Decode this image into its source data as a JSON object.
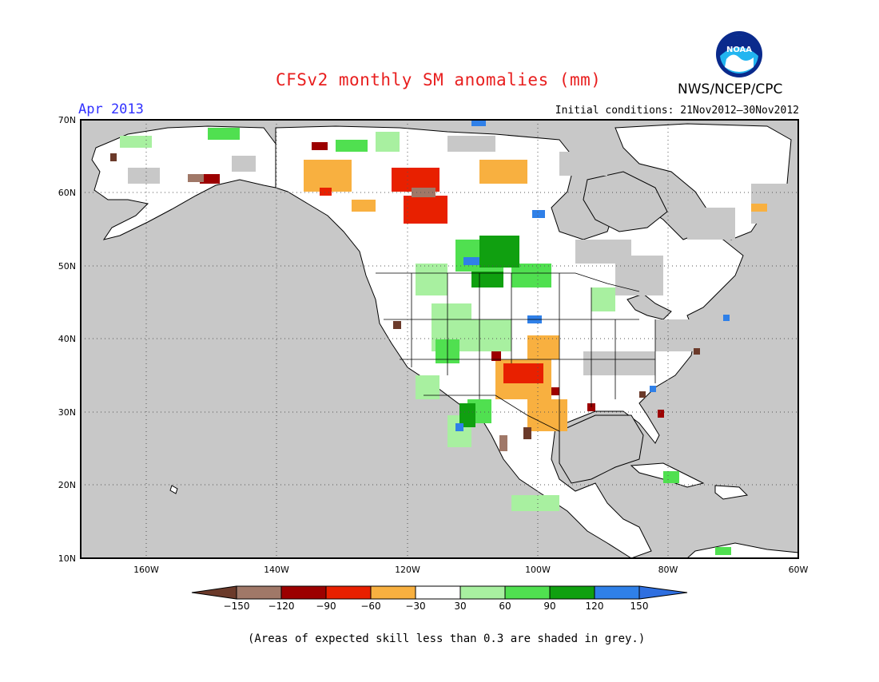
{
  "header": {
    "title": "CFSv2 monthly SM anomalies (mm)",
    "month": "Apr 2013",
    "initial_conditions": "Initial conditions: 21Nov2012–30Nov2012",
    "agency": "NWS/NCEP/CPC",
    "logo_text": "NOAA"
  },
  "map": {
    "lat_labels": [
      "70N",
      "60N",
      "50N",
      "40N",
      "30N",
      "20N",
      "10N"
    ],
    "lon_labels": [
      "160W",
      "140W",
      "120W",
      "100W",
      "80W",
      "60W"
    ],
    "lat_range": [
      10,
      70
    ],
    "lon_range": [
      -170,
      -60
    ],
    "grid": "dotted",
    "background_color": "#c8c8c8",
    "land_color": "#ffffff"
  },
  "legend": {
    "tick_labels": [
      "−150",
      "−120",
      "−90",
      "−60",
      "−30",
      "30",
      "60",
      "90",
      "120",
      "150"
    ],
    "colors": [
      "#6b3a2a",
      "#a07868",
      "#9c0000",
      "#e82000",
      "#f8b040",
      "#ffffff",
      "#a8f0a0",
      "#50e050",
      "#10a010",
      "#2f80e8",
      "#2f6fe0"
    ]
  },
  "footer": {
    "note": "(Areas of expected skill less than 0.3 are shaded in grey.)"
  }
}
